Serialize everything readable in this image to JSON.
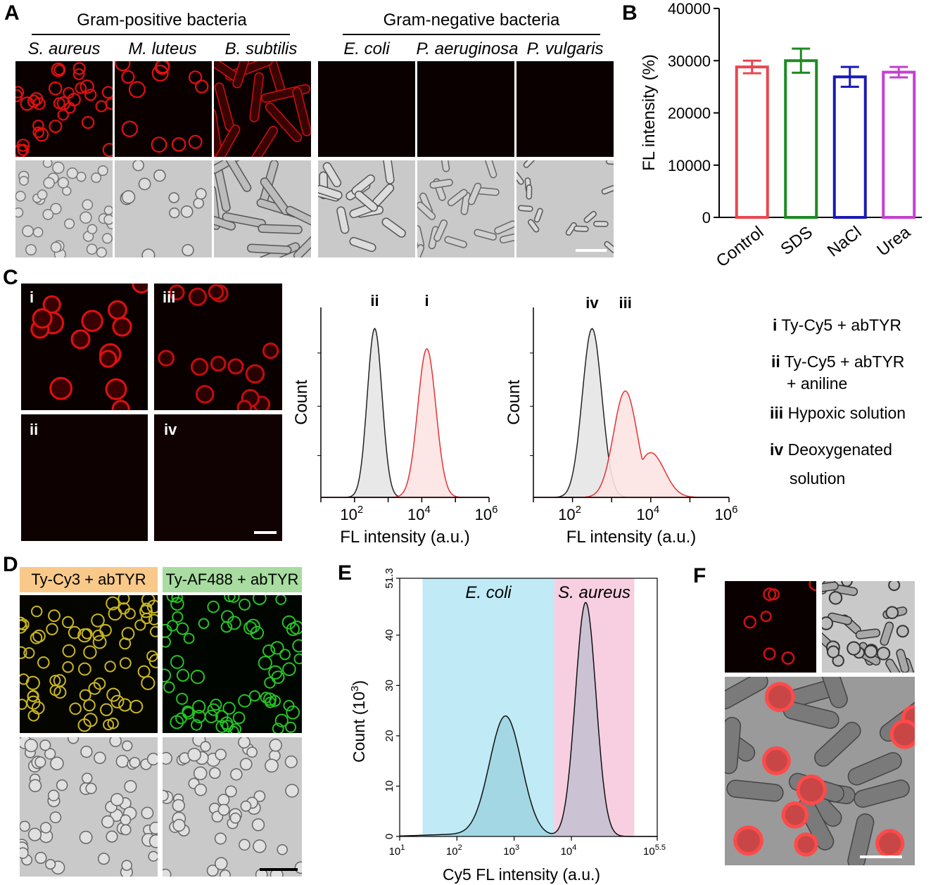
{
  "panels": {
    "A": "A",
    "B": "B",
    "C": "C",
    "D": "D",
    "E": "E",
    "F": "F"
  },
  "panelA": {
    "gram_positive": "Gram-positive bacteria",
    "gram_negative": "Gram-negative bacteria",
    "species": [
      "S. aureus",
      "M. luteus",
      "B. subtilis",
      "E. coli",
      "P. aeruginosa",
      "P. vulgaris"
    ]
  },
  "panelC": {
    "roman": [
      "i",
      "iii",
      "ii",
      "iv"
    ],
    "legend": [
      {
        "num": "i",
        "text": "Ty-Cy5 + abTYR"
      },
      {
        "num": "ii",
        "text": "Ty-Cy5 + abTYR"
      },
      {
        "num": "",
        "text": "+ aniline"
      },
      {
        "num": "iii",
        "text": "Hypoxic solution"
      },
      {
        "num": "iv",
        "text": "Deoxygenated"
      },
      {
        "num": "",
        "text": "solution"
      }
    ]
  },
  "panelD": {
    "labels": [
      "Ty-Cy3 + abTYR",
      "Ty-AF488 + abTYR"
    ],
    "colors": {
      "cy3_box": "#f9c98a",
      "af488_box": "#a8dca0"
    }
  },
  "chart_data": [
    {
      "id": "B",
      "type": "bar",
      "categories": [
        "Control",
        "SDS",
        "NaCl",
        "Urea"
      ],
      "values": [
        28800,
        30000,
        26900,
        27800
      ],
      "errors": [
        1200,
        2300,
        1900,
        1000
      ],
      "colors": [
        "#e8474f",
        "#1e8a23",
        "#1a1ab5",
        "#c63fcf"
      ],
      "ylabel": "FL intensity (%)",
      "ylim": [
        0,
        40000
      ],
      "yticks": [
        "0",
        "10000",
        "20000",
        "30000",
        "40000"
      ]
    },
    {
      "id": "C1",
      "type": "area",
      "ylabel": "Count",
      "xlabel": "FL intensity (a.u.)",
      "xlim_log10": [
        1,
        6
      ],
      "xtick_labels": [
        "10",
        "2",
        "10",
        "4",
        "10",
        "6"
      ],
      "series": [
        {
          "name": "ii",
          "peak_log10": 2.6,
          "width": 0.22,
          "color": "#222",
          "fill": "#e6e6e6"
        },
        {
          "name": "i",
          "peak_log10": 4.15,
          "width": 0.27,
          "color": "#e23333",
          "fill": "#fde3e3"
        }
      ]
    },
    {
      "id": "C2",
      "type": "area",
      "ylabel": "Count",
      "xlabel": "FL intensity (a.u.)",
      "xlim_log10": [
        1,
        6
      ],
      "xtick_labels": [
        "10",
        "2",
        "10",
        "4",
        "10",
        "6"
      ],
      "series": [
        {
          "name": "iv",
          "peak_log10": 2.5,
          "width": 0.25,
          "color": "#222",
          "fill": "#e6e6e6"
        },
        {
          "name": "iii",
          "peak_log10": 3.35,
          "width": 0.3,
          "color": "#e23333",
          "fill": "#fde3e3"
        }
      ]
    },
    {
      "id": "E",
      "type": "line",
      "ylabel": "Count (10",
      "ylabel_sup": "3",
      "ylabel_end": ")",
      "xlabel": "Cy5 FL intensity (a.u.)",
      "xlim_log10": [
        1,
        5.5
      ],
      "ylim": [
        0,
        51.3
      ],
      "yticks": [
        "0",
        "10",
        "20",
        "30",
        "40",
        "51.3"
      ],
      "xticks": [
        {
          "b": "10",
          "s": "1"
        },
        {
          "b": "10",
          "s": "2"
        },
        {
          "b": "10",
          "s": "3"
        },
        {
          "b": "10",
          "s": "4"
        },
        {
          "b": "10",
          "s": "5.5"
        }
      ],
      "regions": [
        {
          "name": "E. coli",
          "from_log10": 1.4,
          "to_log10": 3.7,
          "color": "#bfeaf6"
        },
        {
          "name": "S. aureus",
          "from_log10": 3.7,
          "to_log10": 5.1,
          "color": "#f7cfe0"
        }
      ],
      "peaks": [
        {
          "x_log10": 2.85,
          "y": 23.8
        },
        {
          "x_log10": 4.25,
          "y": 46.5
        }
      ]
    }
  ]
}
